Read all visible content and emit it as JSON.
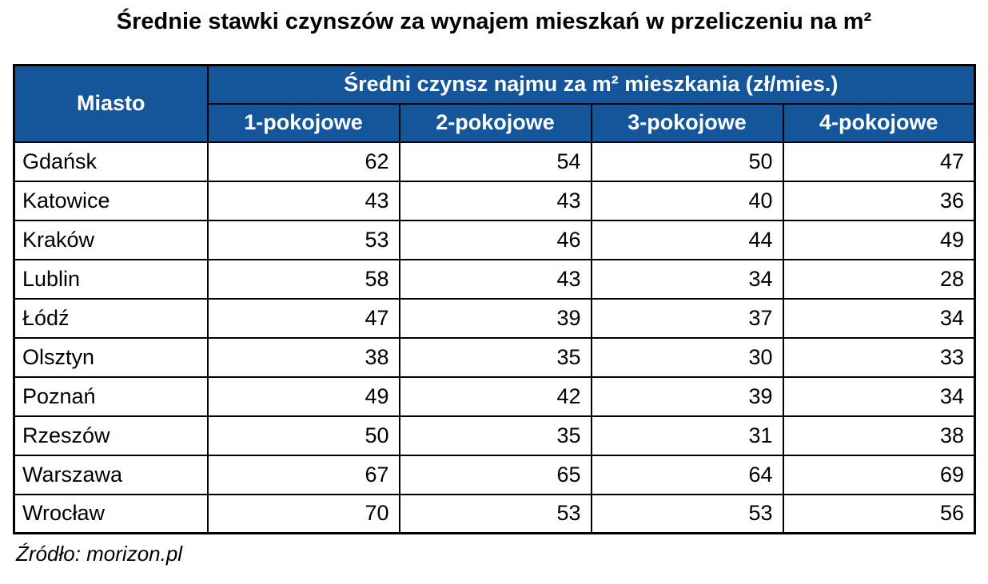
{
  "page": {
    "title": "Średnie stawki czynszów za wynajem mieszkań w przeliczeniu na m²",
    "source": "Źródło: morizon.pl"
  },
  "colors": {
    "header_bg": "#15569B",
    "header_text": "#FFFFFF",
    "border": "#000000",
    "body_bg": "#FFFFFF"
  },
  "chart_data": {
    "type": "table",
    "title": "Średnie stawki czynszów za wynajem mieszkań w przeliczeniu na m²",
    "group_header": "Średni czynsz najmu za m² mieszkania (zł/mies.)",
    "columns": [
      "Miasto",
      "1-pokojowe",
      "2-pokojowe",
      "3-pokojowe",
      "4-pokojowe"
    ],
    "rows": [
      [
        "Gdańsk",
        62,
        54,
        50,
        47
      ],
      [
        "Katowice",
        43,
        43,
        40,
        36
      ],
      [
        "Kraków",
        53,
        46,
        44,
        49
      ],
      [
        "Lublin",
        58,
        43,
        34,
        28
      ],
      [
        "Łódź",
        47,
        39,
        37,
        34
      ],
      [
        "Olsztyn",
        38,
        35,
        30,
        33
      ],
      [
        "Poznań",
        49,
        42,
        39,
        34
      ],
      [
        "Rzeszów",
        50,
        35,
        31,
        38
      ],
      [
        "Warszawa",
        67,
        65,
        64,
        69
      ],
      [
        "Wrocław",
        70,
        53,
        53,
        56
      ]
    ],
    "source": "Źródło: morizon.pl"
  }
}
